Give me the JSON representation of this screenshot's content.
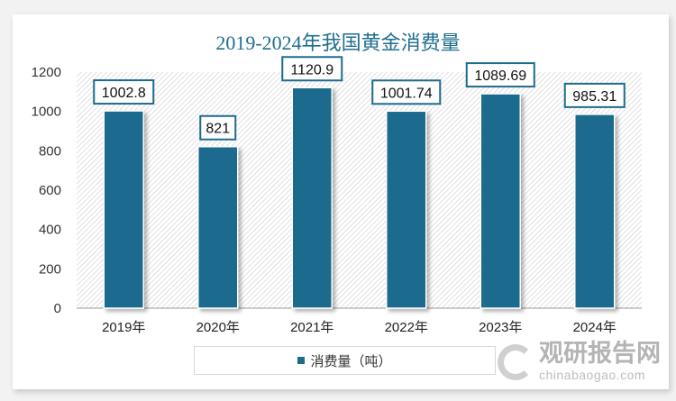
{
  "chart_data": {
    "type": "bar",
    "title": "2019-2024年我国黄金消费量",
    "categories": [
      "2019年",
      "2020年",
      "2021年",
      "2022年",
      "2023年",
      "2024年"
    ],
    "series": [
      {
        "name": "消费量（吨）",
        "values": [
          1002.8,
          821,
          1120.9,
          1001.74,
          1089.69,
          985.31
        ]
      }
    ],
    "data_labels": [
      "1002.8",
      "821",
      "1120.9",
      "1001.74",
      "1089.69",
      "985.31"
    ],
    "ylim": [
      0,
      1200
    ],
    "yticks": [
      0,
      200,
      400,
      600,
      800,
      1000,
      1200
    ],
    "grid": false,
    "legend_position": "bottom",
    "colors": {
      "bar": "#1d6b8d",
      "title": "#1f6e8f"
    }
  },
  "watermark": {
    "name": "观研报告网",
    "url": "chinabaogao.com"
  }
}
